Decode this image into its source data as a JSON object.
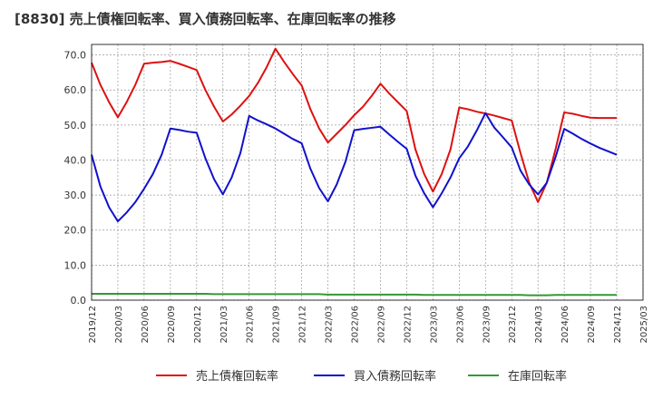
{
  "chart_data": {
    "type": "line",
    "title": "[8830]  売上債権回転率、買入債務回転率、在庫回転率の推移",
    "xlabel": "",
    "ylabel": "",
    "ylim": [
      0,
      73
    ],
    "yticks": [
      0,
      10,
      20,
      30,
      40,
      50,
      60,
      70
    ],
    "ytick_labels": [
      "0.0",
      "10.0",
      "20.0",
      "30.0",
      "40.0",
      "50.0",
      "60.0",
      "70.0"
    ],
    "xtick_labels": [
      "2019/12",
      "2020/03",
      "2020/06",
      "2020/09",
      "2020/12",
      "2021/03",
      "2021/06",
      "2021/09",
      "2021/12",
      "2022/03",
      "2022/06",
      "2022/09",
      "2022/12",
      "2023/03",
      "2023/06",
      "2023/09",
      "2023/12",
      "2024/03",
      "2024/06",
      "2024/09",
      "2024/12",
      "2025/03"
    ],
    "x": [
      "2019/12",
      "2020/01",
      "2020/02",
      "2020/03",
      "2020/04",
      "2020/05",
      "2020/06",
      "2020/07",
      "2020/08",
      "2020/09",
      "2020/10",
      "2020/11",
      "2020/12",
      "2021/01",
      "2021/02",
      "2021/03",
      "2021/04",
      "2021/05",
      "2021/06",
      "2021/07",
      "2021/08",
      "2021/09",
      "2021/10",
      "2021/11",
      "2021/12",
      "2022/01",
      "2022/02",
      "2022/03",
      "2022/04",
      "2022/05",
      "2022/06",
      "2022/07",
      "2022/08",
      "2022/09",
      "2022/10",
      "2022/11",
      "2022/12",
      "2023/01",
      "2023/02",
      "2023/03",
      "2023/04",
      "2023/05",
      "2023/06",
      "2023/07",
      "2023/08",
      "2023/09",
      "2023/10",
      "2023/11",
      "2023/12",
      "2024/01",
      "2024/02",
      "2024/03",
      "2024/04",
      "2024/05",
      "2024/06",
      "2024/07",
      "2024/08",
      "2024/09",
      "2024/10",
      "2024/11",
      "2024/12"
    ],
    "series": [
      {
        "name": "売上債権回転率",
        "color": "#dd1111",
        "values": [
          67.8,
          61.5,
          56.5,
          52.2,
          56.5,
          61.5,
          67.5,
          67.8,
          68.0,
          68.3,
          67.5,
          66.6,
          65.7,
          60.0,
          55.2,
          51.0,
          53.0,
          55.5,
          58.3,
          62.0,
          66.5,
          71.8,
          68.0,
          64.5,
          61.3,
          54.5,
          49.0,
          45.0,
          47.5,
          50.0,
          52.8,
          55.2,
          58.3,
          61.8,
          59.0,
          56.5,
          54.0,
          43.0,
          36.0,
          31.0,
          36.0,
          43.0,
          55.0,
          54.5,
          53.8,
          53.3,
          52.7,
          52.0,
          51.3,
          42.0,
          33.5,
          28.0,
          33.5,
          43.0,
          53.6,
          53.2,
          52.6,
          52.1,
          52.0,
          52.0,
          52.0
        ]
      },
      {
        "name": "買入債務回転率",
        "color": "#1111cc",
        "values": [
          41.5,
          32.5,
          26.5,
          22.5,
          25.0,
          28.0,
          31.8,
          36.0,
          41.5,
          49.0,
          48.6,
          48.1,
          47.8,
          40.5,
          34.5,
          30.2,
          35.0,
          42.0,
          52.6,
          51.3,
          50.2,
          49.0,
          47.5,
          46.0,
          44.8,
          37.5,
          32.0,
          28.2,
          33.0,
          39.5,
          48.5,
          48.9,
          49.2,
          49.5,
          47.3,
          45.2,
          43.2,
          35.5,
          30.5,
          26.5,
          30.5,
          35.0,
          40.5,
          43.9,
          48.4,
          53.4,
          49.3,
          46.5,
          43.6,
          37.0,
          33.0,
          30.2,
          33.5,
          40.8,
          48.9,
          47.5,
          46.0,
          44.7,
          43.5,
          42.5,
          41.5
        ]
      },
      {
        "name": "在庫回転率",
        "color": "#339933",
        "values": [
          1.8,
          1.8,
          1.8,
          1.8,
          1.8,
          1.8,
          1.8,
          1.8,
          1.8,
          1.8,
          1.8,
          1.8,
          1.8,
          1.8,
          1.7,
          1.7,
          1.7,
          1.7,
          1.7,
          1.7,
          1.7,
          1.7,
          1.7,
          1.7,
          1.7,
          1.7,
          1.7,
          1.6,
          1.6,
          1.6,
          1.6,
          1.6,
          1.6,
          1.6,
          1.6,
          1.6,
          1.6,
          1.6,
          1.5,
          1.5,
          1.5,
          1.5,
          1.5,
          1.5,
          1.5,
          1.5,
          1.5,
          1.5,
          1.5,
          1.5,
          1.4,
          1.4,
          1.4,
          1.5,
          1.5,
          1.5,
          1.5,
          1.5,
          1.5,
          1.5,
          1.5
        ]
      }
    ]
  }
}
